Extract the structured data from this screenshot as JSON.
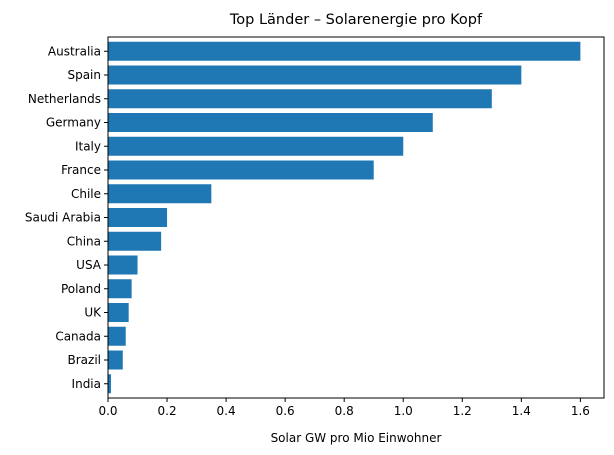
{
  "chart_data": {
    "type": "bar",
    "orientation": "horizontal",
    "title": "Top Länder – Solarenergie pro Kopf",
    "xlabel": "Solar GW pro Mio Einwohner",
    "ylabel": "",
    "xlim": [
      0,
      1.68
    ],
    "xticks": [
      "0.0",
      "0.2",
      "0.4",
      "0.6",
      "0.8",
      "1.0",
      "1.2",
      "1.4",
      "1.6"
    ],
    "categories": [
      "Australia",
      "Spain",
      "Netherlands",
      "Germany",
      "Italy",
      "France",
      "Chile",
      "Saudi Arabia",
      "China",
      "USA",
      "Poland",
      "UK",
      "Canada",
      "Brazil",
      "India"
    ],
    "values": [
      1.6,
      1.4,
      1.3,
      1.1,
      1.0,
      0.9,
      0.35,
      0.2,
      0.18,
      0.1,
      0.08,
      0.07,
      0.06,
      0.05,
      0.01
    ],
    "grid": false,
    "legend": "none",
    "colors": {
      "bar": "#1f77b4",
      "axis": "#000000",
      "background": "#ffffff"
    }
  }
}
